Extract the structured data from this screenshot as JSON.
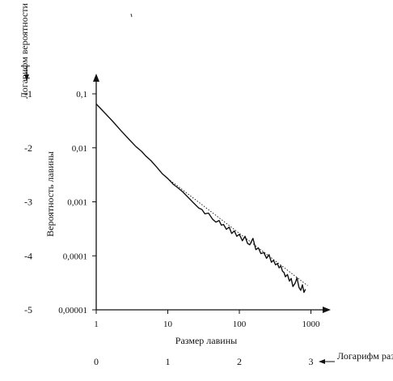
{
  "chart_data": {
    "type": "line",
    "x_scale": "log",
    "y_scale": "log",
    "xlim": [
      1,
      1000
    ],
    "ylim": [
      1e-05,
      0.1
    ],
    "xlabel": "Размер лавины",
    "ylabel": "Вероятность лавины",
    "x_ticks": [
      "1",
      "10",
      "100",
      "1000"
    ],
    "y_ticks": [
      "0,00001",
      "0,0001",
      "0,001",
      "0,01",
      "0,1"
    ],
    "secondary_x_label": "Логарифм размера",
    "secondary_x_ticks": [
      "0",
      "1",
      "2",
      "3"
    ],
    "secondary_y_label": "Логарифм вероятности",
    "secondary_y_ticks": [
      "-1",
      "-2",
      "-3",
      "-4",
      "-5"
    ],
    "grid": false,
    "legend": "none",
    "series": [
      {
        "style": "solid",
        "x": [
          1,
          1.3,
          1.7,
          2.2,
          2.9,
          3.6,
          4.3,
          4.9,
          5.8,
          7.1,
          8.4,
          10,
          12,
          14,
          16,
          19,
          23,
          27,
          30,
          33,
          37,
          42,
          47,
          52,
          56,
          60,
          66,
          72,
          78,
          85,
          92,
          100,
          110,
          120,
          130,
          140,
          155,
          170,
          185,
          200,
          220,
          240,
          260,
          280,
          300,
          320,
          340,
          360,
          380,
          400,
          420,
          440,
          470,
          500,
          530,
          560,
          600,
          640,
          680,
          720,
          760,
          800,
          840
        ],
        "y": [
          0.065,
          0.045,
          0.031,
          0.021,
          0.0142,
          0.0105,
          0.0086,
          0.0071,
          0.0058,
          0.0043,
          0.0033,
          0.0027,
          0.0021,
          0.0018,
          0.00155,
          0.00123,
          0.00095,
          0.00077,
          0.00072,
          0.0006,
          0.00062,
          0.00048,
          0.00042,
          0.00045,
          0.00037,
          0.00038,
          0.00031,
          0.00034,
          0.00026,
          0.00029,
          0.00023,
          0.00025,
          0.00019,
          0.00023,
          0.00017,
          0.00016,
          0.00021,
          0.00013,
          0.00014,
          0.00011,
          0.000115,
          9e-05,
          0.000105,
          7.6e-05,
          8.3e-05,
          6.8e-05,
          7.2e-05,
          6e-05,
          6.5e-05,
          5.2e-05,
          4.9e-05,
          4.1e-05,
          4.5e-05,
          3.4e-05,
          3.8e-05,
          2.7e-05,
          3.1e-05,
          3.9e-05,
          2.6e-05,
          2.3e-05,
          2.9e-05,
          2.1e-05,
          2.4e-05
        ]
      },
      {
        "style": "dotted",
        "x": [
          10,
          900
        ],
        "y": [
          0.0027,
          2.8e-05
        ]
      }
    ]
  }
}
